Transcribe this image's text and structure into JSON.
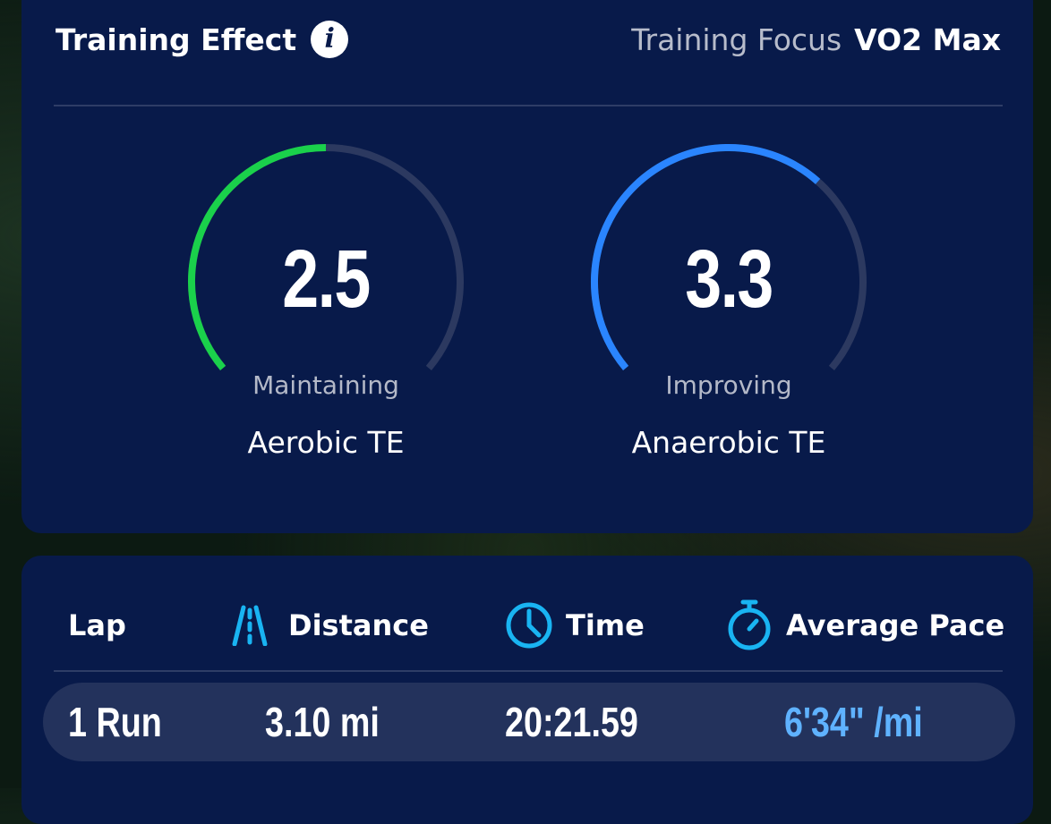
{
  "training_effect": {
    "title": "Training Effect",
    "focus_label": "Training Focus",
    "focus_value": "VO2 Max",
    "gauges": [
      {
        "value": "2.5",
        "fraction": 0.5,
        "status": "Maintaining",
        "name": "Aerobic TE",
        "color": "#1ad14b"
      },
      {
        "value": "3.3",
        "fraction": 0.66,
        "status": "Improving",
        "name": "Anaerobic TE",
        "color": "#2a85ff"
      }
    ],
    "track_color": "#2c3960"
  },
  "laps": {
    "headers": {
      "lap": "Lap",
      "distance": "Distance",
      "time": "Time",
      "pace": "Average Pace"
    },
    "icon_color": "#19b4f2",
    "rows": [
      {
        "lap": "1 Run",
        "distance": "3.10 mi",
        "time": "20:21.59",
        "pace": "6'34\" /mi",
        "pace_color": "#5fb2ff"
      }
    ]
  }
}
